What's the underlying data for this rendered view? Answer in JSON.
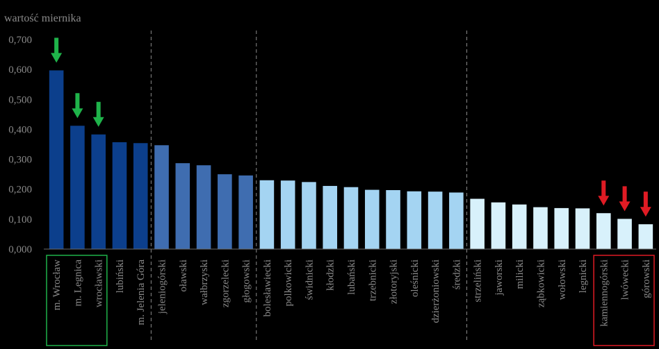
{
  "chart_data": {
    "type": "bar",
    "ylabel": "wartość miernika",
    "ylim": [
      0,
      0.7
    ],
    "yticks": [
      "0,000",
      "0,100",
      "0,200",
      "0,300",
      "0,400",
      "0,500",
      "0,600",
      "0,700"
    ],
    "grid": false,
    "categories": [
      "m. Wrocław",
      "m. Legnica",
      "wrocławski",
      "lubiński",
      "m. Jelenia Góra",
      "jeleniogórski",
      "oławski",
      "wałbrzyski",
      "zgorzelecki",
      "głogowski",
      "bolesławiecki",
      "polkowicki",
      "świdnicki",
      "kłodzki",
      "lubański",
      "trzebnicki",
      "złotoryjski",
      "oleśnicki",
      "dzierżoniowski",
      "średzki",
      "strzeliński",
      "jaworski",
      "milicki",
      "ząbkowicki",
      "wołowski",
      "legnicki",
      "kamiennogórski",
      "lwówecki",
      "górowski"
    ],
    "values": [
      0.597,
      0.412,
      0.383,
      0.357,
      0.354,
      0.347,
      0.287,
      0.28,
      0.25,
      0.246,
      0.23,
      0.229,
      0.224,
      0.211,
      0.207,
      0.198,
      0.197,
      0.193,
      0.192,
      0.189,
      0.168,
      0.156,
      0.149,
      0.14,
      0.137,
      0.136,
      0.12,
      0.101,
      0.083
    ],
    "groups": [
      {
        "from": 0,
        "to": 4,
        "color": "#0c3f8c"
      },
      {
        "from": 5,
        "to": 9,
        "color": "#3f6db0"
      },
      {
        "from": 10,
        "to": 19,
        "color": "#a4d4f2"
      },
      {
        "from": 20,
        "to": 28,
        "color": "#d8f1fb"
      }
    ],
    "dividers_after": [
      4,
      9,
      19
    ],
    "highlights": [
      {
        "from": 0,
        "to": 2,
        "color": "#1fb34a",
        "arrow_on": [
          0,
          1,
          2
        ]
      },
      {
        "from": 26,
        "to": 28,
        "color": "#e01b24",
        "arrow_on": [
          26,
          27,
          28
        ]
      }
    ]
  }
}
